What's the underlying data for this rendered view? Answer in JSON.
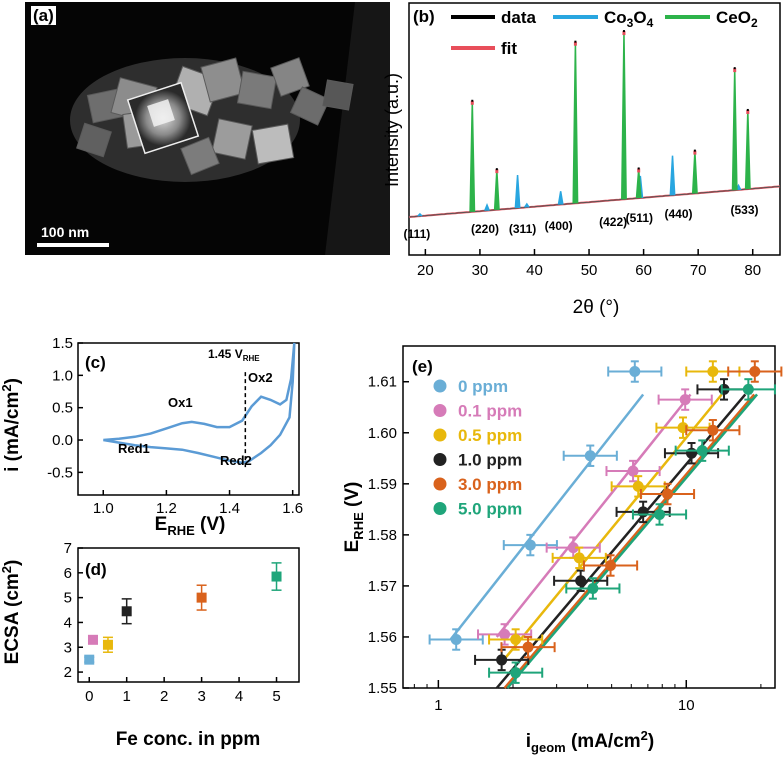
{
  "panel_a": {
    "label": "(a)",
    "scale_bar": "100 nm"
  },
  "panel_b": {
    "label": "(b)",
    "legend": [
      "data",
      "Co3O4",
      "CeO2",
      "fit"
    ],
    "legend_colors": [
      "#000000",
      "#29a6e0",
      "#2db34a",
      "#e84e5a"
    ],
    "ylabel": "Intensity (a.u.)",
    "xlabel": "2θ (°)",
    "hkl": [
      "(111)",
      "(220)",
      "(311)",
      "(400)",
      "(422)",
      "(511)",
      "(440)",
      "(533)"
    ]
  },
  "panel_c": {
    "label": "(c)",
    "annotation": "1.45 V",
    "annotation_sub": "RHE",
    "labels": [
      "Ox1",
      "Ox2",
      "Red1",
      "Red2"
    ],
    "xlabel": "E",
    "xlabel_sub": "RHE",
    "xlabel_unit": " (V)",
    "ylabel": "i (mA/cm",
    "ylabel_sup": "2",
    "ylabel_end": ")"
  },
  "panel_d": {
    "label": "(d)",
    "xlabel": "Fe conc. in ppm",
    "ylabel": "ECSA (cm",
    "ylabel_sup": "2",
    "ylabel_end": ")"
  },
  "panel_e": {
    "label": "(e)",
    "xlabel": "i",
    "xlabel_sub": "geom",
    "xlabel_unit": " (mA/cm",
    "xlabel_sup": "2",
    "xlabel_end": ")",
    "ylabel": "E",
    "ylabel_sub": "RHE",
    "ylabel_unit": " (V)"
  },
  "chart_data": [
    {
      "id": "b",
      "type": "line",
      "title": "",
      "xlabel": "2θ (°)",
      "ylabel": "Intensity (a.u.)",
      "xlim": [
        17,
        85
      ],
      "ylim": [
        0,
        100
      ],
      "xticks": [
        20,
        30,
        40,
        50,
        60,
        70,
        80
      ],
      "series": [
        {
          "name": "CeO2",
          "color": "#2db34a",
          "peaks": [
            [
              28.6,
              100
            ],
            [
              33.1,
              36
            ],
            [
              47.5,
              146
            ],
            [
              56.4,
              152
            ],
            [
              59.1,
              26
            ],
            [
              69.4,
              38
            ],
            [
              76.7,
              110
            ],
            [
              79.1,
              71
            ]
          ]
        },
        {
          "name": "Co3O4",
          "color": "#29a6e0",
          "peaks": [
            [
              19.0,
              2
            ],
            [
              31.3,
              5
            ],
            [
              36.9,
              30
            ],
            [
              38.6,
              3
            ],
            [
              44.8,
              12
            ],
            [
              59.4,
              20
            ],
            [
              65.3,
              36
            ],
            [
              77.4,
              4
            ]
          ]
        }
      ],
      "hkl_positions": [
        19.0,
        31.3,
        36.9,
        44.8,
        55.7,
        59.4,
        65.3,
        77.4
      ]
    },
    {
      "id": "c",
      "type": "line",
      "xlabel": "E_RHE (V)",
      "ylabel": "i (mA/cm2)",
      "xlim": [
        0.92,
        1.62
      ],
      "ylim": [
        -0.85,
        1.5
      ],
      "xticks": [
        1.0,
        1.2,
        1.4,
        1.6
      ],
      "yticks": [
        -0.5,
        0.0,
        0.5,
        1.0,
        1.5
      ],
      "anodic": [
        [
          1.0,
          0.0
        ],
        [
          1.05,
          0.02
        ],
        [
          1.1,
          0.05
        ],
        [
          1.15,
          0.1
        ],
        [
          1.2,
          0.18
        ],
        [
          1.25,
          0.26
        ],
        [
          1.28,
          0.28
        ],
        [
          1.32,
          0.25
        ],
        [
          1.36,
          0.2
        ],
        [
          1.4,
          0.2
        ],
        [
          1.44,
          0.3
        ],
        [
          1.47,
          0.52
        ],
        [
          1.5,
          0.67
        ],
        [
          1.53,
          0.62
        ],
        [
          1.56,
          0.55
        ],
        [
          1.58,
          0.62
        ],
        [
          1.595,
          0.95
        ],
        [
          1.605,
          1.5
        ]
      ],
      "cathodic": [
        [
          1.605,
          1.5
        ],
        [
          1.6,
          0.9
        ],
        [
          1.59,
          0.35
        ],
        [
          1.56,
          0.08
        ],
        [
          1.53,
          -0.08
        ],
        [
          1.5,
          -0.2
        ],
        [
          1.46,
          -0.33
        ],
        [
          1.44,
          -0.35
        ],
        [
          1.4,
          -0.32
        ],
        [
          1.35,
          -0.26
        ],
        [
          1.3,
          -0.2
        ],
        [
          1.25,
          -0.15
        ],
        [
          1.2,
          -0.13
        ],
        [
          1.15,
          -0.11
        ],
        [
          1.1,
          -0.08
        ],
        [
          1.05,
          -0.04
        ],
        [
          1.0,
          0.0
        ]
      ]
    },
    {
      "id": "d",
      "type": "scatter",
      "xlabel": "Fe conc. in ppm",
      "ylabel": "ECSA (cm2)",
      "xlim": [
        -0.3,
        5.6
      ],
      "ylim": [
        1.6,
        7.0
      ],
      "xticks": [
        0,
        1,
        2,
        3,
        4,
        5
      ],
      "yticks": [
        2,
        3,
        4,
        5,
        6,
        7
      ],
      "points": [
        {
          "x": 0.0,
          "y": 2.5,
          "err": 0.1,
          "color": "#6aaed6"
        },
        {
          "x": 0.1,
          "y": 3.3,
          "err": 0.15,
          "color": "#d67bb8"
        },
        {
          "x": 0.5,
          "y": 3.1,
          "err": 0.3,
          "color": "#e8b80c"
        },
        {
          "x": 1.0,
          "y": 4.45,
          "err": 0.5,
          "color": "#222222"
        },
        {
          "x": 3.0,
          "y": 5.0,
          "err": 0.5,
          "color": "#d9621c"
        },
        {
          "x": 5.0,
          "y": 5.85,
          "err": 0.55,
          "color": "#1fa57a"
        }
      ]
    },
    {
      "id": "e",
      "type": "scatter",
      "xscale": "log",
      "xlabel": "i_geom (mA/cm2)",
      "ylabel": "E_RHE (V)",
      "xlim": [
        0.72,
        22.8
      ],
      "ylim": [
        1.55,
        1.617
      ],
      "xticks": [
        1,
        10
      ],
      "yticks": [
        1.55,
        1.56,
        1.57,
        1.58,
        1.59,
        1.6,
        1.61
      ],
      "series": [
        {
          "name": "0 ppm",
          "color": "#6aaed6",
          "points": [
            [
              1.18,
              1.5595
            ],
            [
              2.35,
              1.578
            ],
            [
              4.1,
              1.5955
            ],
            [
              6.2,
              1.612
            ]
          ],
          "fit": [
            [
              1.12,
              1.5595
            ],
            [
              6.7,
              1.6075
            ]
          ]
        },
        {
          "name": "0.1 ppm",
          "color": "#d67bb8",
          "points": [
            [
              1.85,
              1.5605
            ],
            [
              3.5,
              1.5775
            ],
            [
              6.1,
              1.5925
            ],
            [
              9.9,
              1.6065
            ]
          ],
          "fit": [
            [
              1.72,
              1.56
            ],
            [
              10.4,
              1.6075
            ]
          ]
        },
        {
          "name": "0.5 ppm",
          "color": "#e8b80c",
          "points": [
            [
              2.05,
              1.5595
            ],
            [
              3.7,
              1.5755
            ],
            [
              6.4,
              1.5895
            ],
            [
              9.7,
              1.601
            ],
            [
              12.8,
              1.612
            ]
          ],
          "fit": [
            [
              1.8,
              1.555
            ],
            [
              13.9,
              1.6075
            ]
          ]
        },
        {
          "name": "1.0 ppm",
          "color": "#222222",
          "points": [
            [
              1.8,
              1.5555
            ],
            [
              3.75,
              1.571
            ],
            [
              6.7,
              1.5845
            ],
            [
              10.5,
              1.596
            ],
            [
              14.2,
              1.6085
            ]
          ],
          "fit": [
            [
              1.72,
              1.55
            ],
            [
              17.3,
              1.6075
            ]
          ]
        },
        {
          "name": "3.0 ppm",
          "color": "#d9621c",
          "points": [
            [
              2.3,
              1.558
            ],
            [
              4.95,
              1.574
            ],
            [
              8.4,
              1.588
            ],
            [
              12.8,
              1.6005
            ],
            [
              18.9,
              1.612
            ]
          ],
          "fit": [
            [
              1.85,
              1.55
            ],
            [
              18.8,
              1.6075
            ]
          ]
        },
        {
          "name": "5.0 ppm",
          "color": "#1fa57a",
          "points": [
            [
              2.05,
              1.553
            ],
            [
              4.2,
              1.5695
            ],
            [
              7.8,
              1.584
            ],
            [
              11.6,
              1.5965
            ],
            [
              17.8,
              1.6085
            ]
          ],
          "fit": [
            [
              1.9,
              1.55
            ],
            [
              19.3,
              1.6075
            ]
          ]
        }
      ]
    }
  ]
}
